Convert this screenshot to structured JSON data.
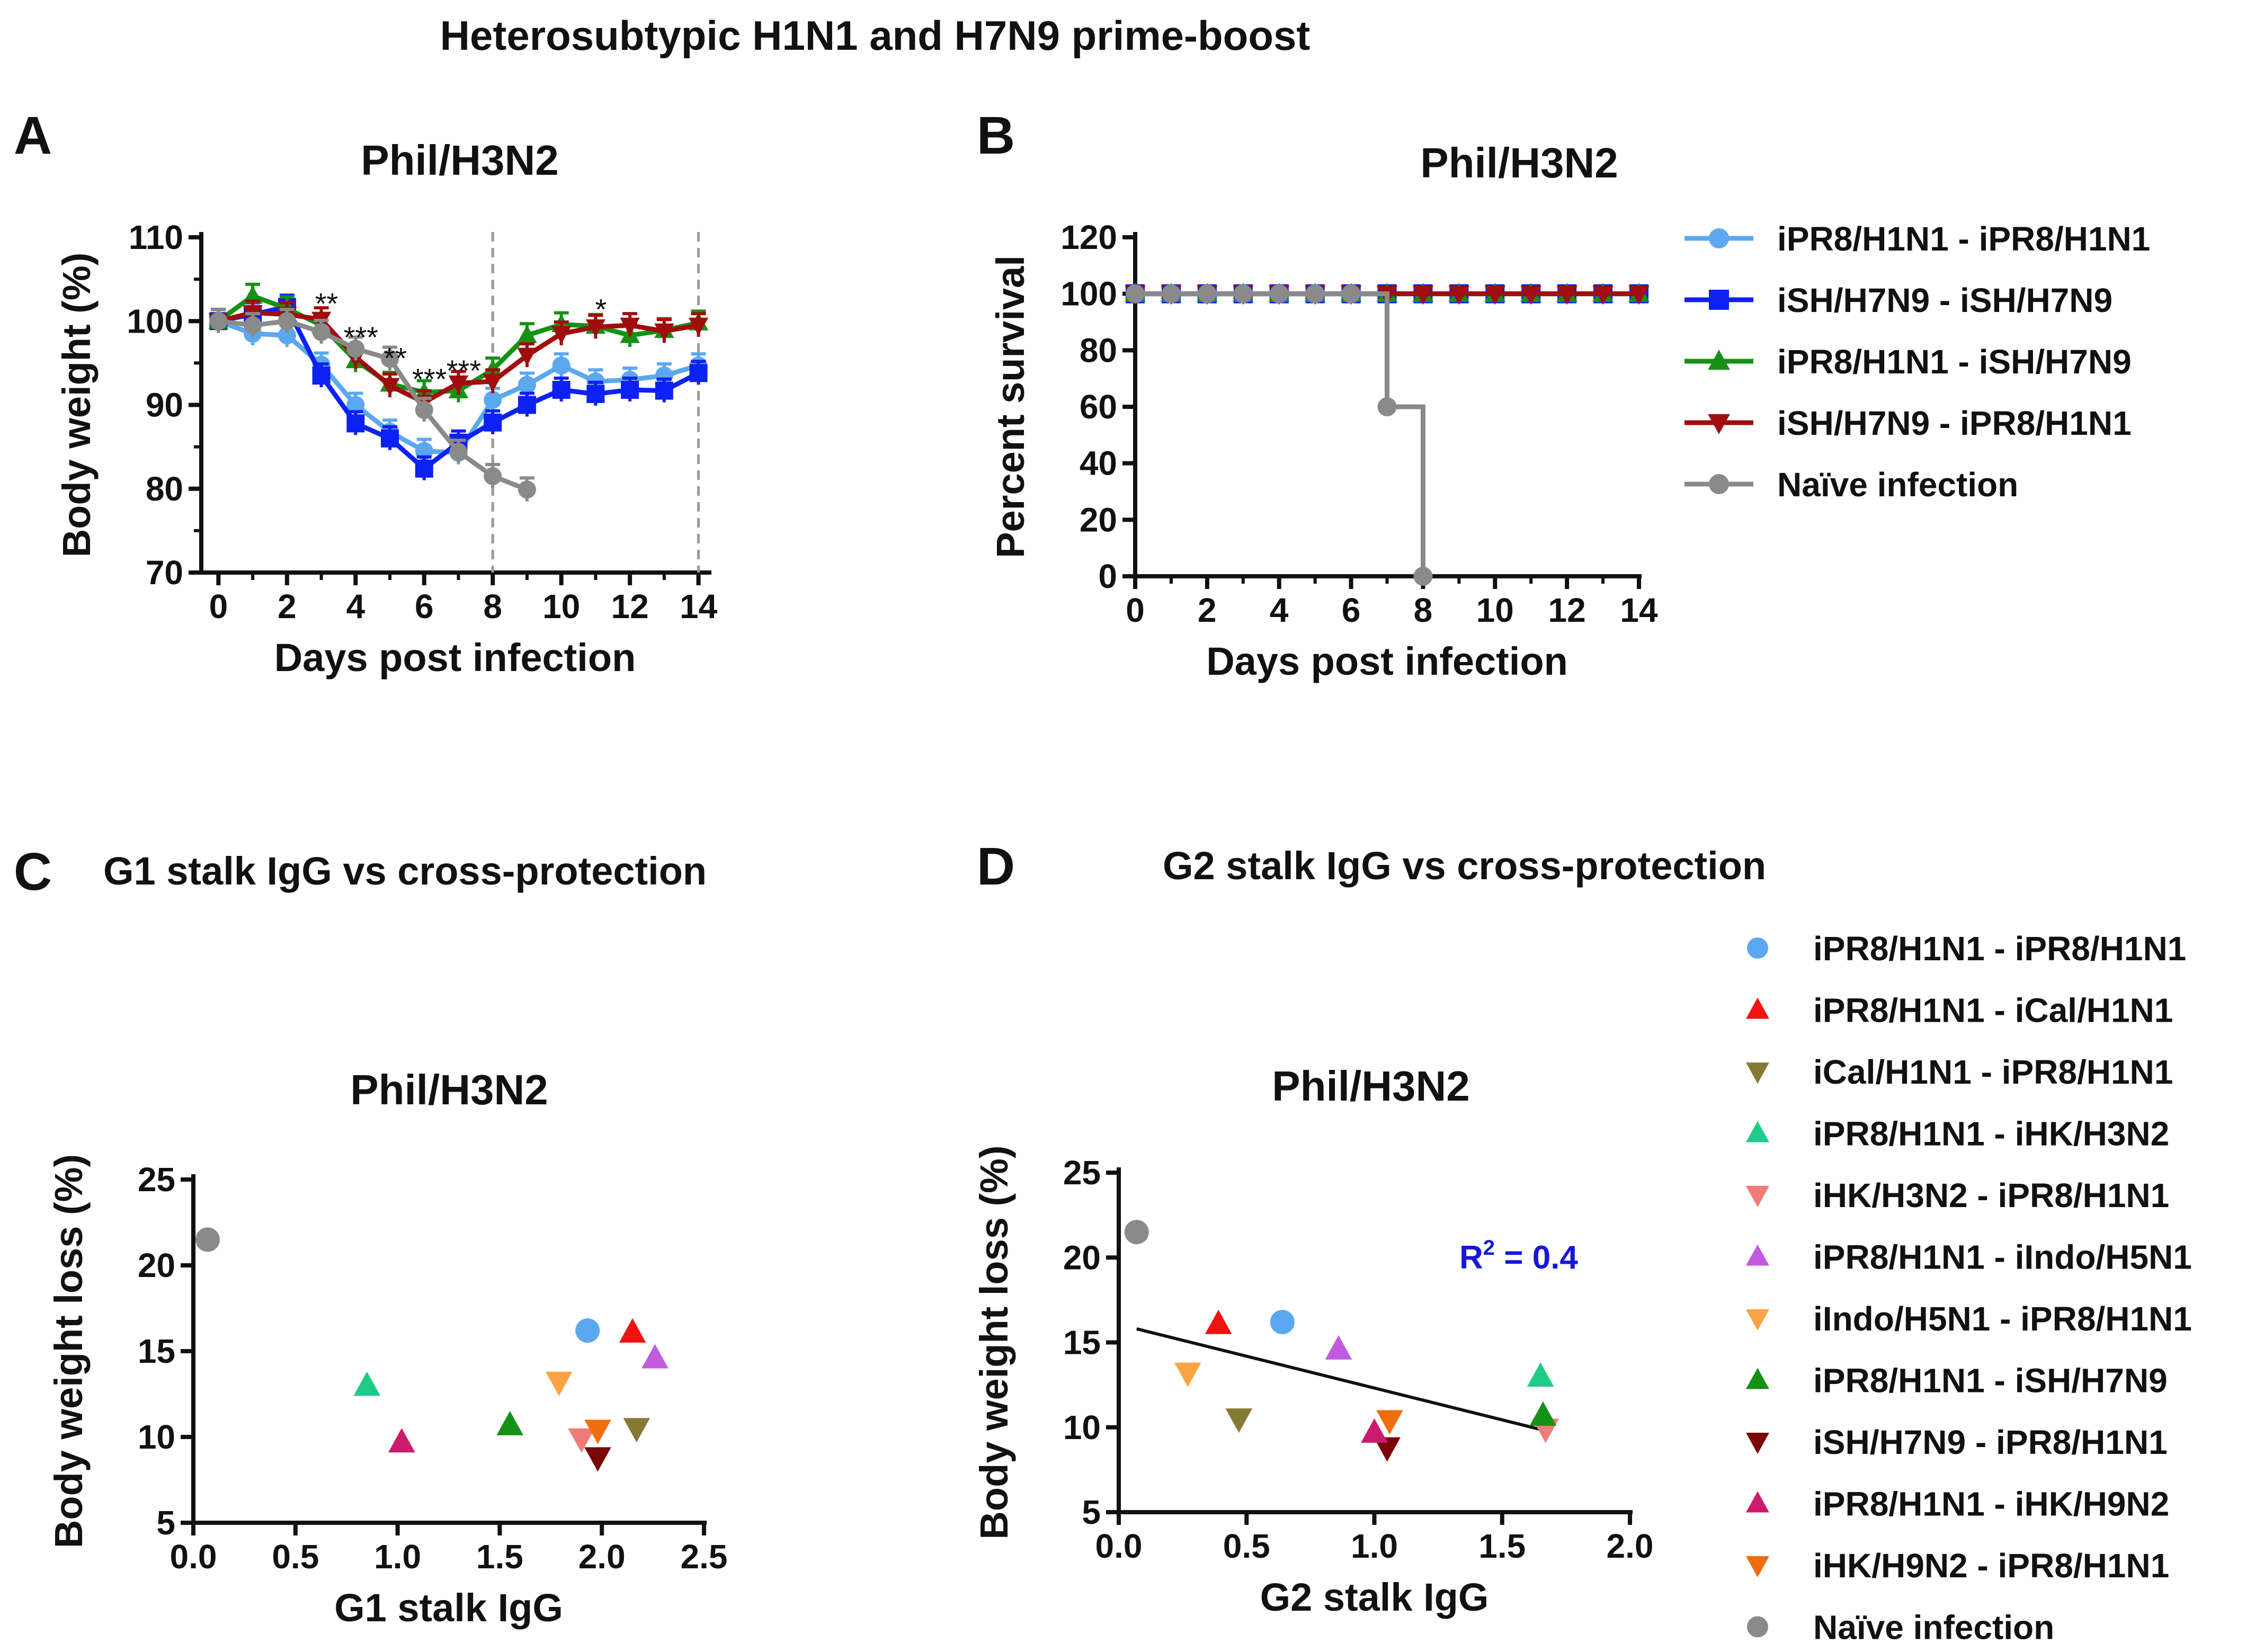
{
  "figure_title": "Heterosubtypic H1N1 and H7N9 prime-boost",
  "colors": {
    "lightblue": "#5BA8F0",
    "blue": "#0D21F2",
    "green": "#159115",
    "darkred": "#A10D0D",
    "gray": "#8A8A8A",
    "red": "#F21111",
    "olive": "#857A33",
    "teal": "#1ECC88",
    "pink": "#F27A7A",
    "purple": "#C15BE0",
    "lightorange": "#FCA443",
    "maroon": "#7A0606",
    "magenta": "#CC1A6E",
    "orange": "#F06D0D",
    "r2": "#1717D9"
  },
  "chart_data": [
    {
      "id": "A",
      "panel_label": "A",
      "type": "line",
      "title": "Phil/H3N2",
      "xlabel": "Days post infection",
      "ylabel": "Body weight (%)",
      "xlim": [
        -0.5,
        14.3
      ],
      "ylim": [
        70,
        110
      ],
      "xticks": [
        0,
        2,
        4,
        6,
        8,
        10,
        12,
        14
      ],
      "yticks": [
        70,
        80,
        90,
        100,
        110
      ],
      "vlines": [
        8,
        14
      ],
      "series": [
        {
          "name": "iPR8/H1N1 - iPR8/H1N1",
          "color": "lightblue",
          "marker": "circle",
          "x": [
            0,
            1,
            2,
            3,
            4,
            5,
            6,
            7,
            8,
            9,
            10,
            11,
            12,
            13,
            14
          ],
          "y": [
            100,
            98.5,
            98.3,
            94.8,
            90,
            86.8,
            84.5,
            84.3,
            90.6,
            92.4,
            94.7,
            92.8,
            93,
            93.5,
            94.7
          ]
        },
        {
          "name": "iSH/H7N9 - iSH/H7N9",
          "color": "blue",
          "marker": "square",
          "x": [
            0,
            1,
            2,
            3,
            4,
            5,
            6,
            7,
            8,
            9,
            10,
            11,
            12,
            13,
            14
          ],
          "y": [
            100,
            100.8,
            101.7,
            93.5,
            87.8,
            86,
            82.4,
            85.5,
            87.9,
            90,
            91.8,
            91.3,
            91.8,
            91.7,
            93.8
          ]
        },
        {
          "name": "iPR8/H1N1 - iSH/H7N9",
          "color": "green",
          "marker": "triangle-up",
          "x": [
            0,
            1,
            2,
            3,
            4,
            5,
            6,
            7,
            8,
            9,
            10,
            11,
            12,
            13,
            14
          ],
          "y": [
            100,
            103,
            101.5,
            99.5,
            95.3,
            92.5,
            91.5,
            91.7,
            94.2,
            98.3,
            99.6,
            99.4,
            98.3,
            98.9,
            99.8
          ]
        },
        {
          "name": "iSH/H7N9 - iPR8/H1N1",
          "color": "darkred",
          "marker": "triangle-down",
          "x": [
            0,
            1,
            2,
            3,
            4,
            5,
            6,
            7,
            8,
            9,
            10,
            11,
            12,
            13,
            14
          ],
          "y": [
            100,
            101,
            100.8,
            100.2,
            95.7,
            92.3,
            90.3,
            92.6,
            92.8,
            95.9,
            98.5,
            99.3,
            99.5,
            98.8,
            99.5
          ]
        },
        {
          "name": "Naïve infection",
          "color": "gray",
          "marker": "circle",
          "x": [
            0,
            1,
            2,
            3,
            4,
            5,
            6,
            7,
            8,
            9
          ],
          "y": [
            100,
            99.5,
            100,
            98.7,
            96.7,
            95.5,
            89.4,
            84.4,
            81.5,
            79.9
          ]
        }
      ],
      "significance": [
        {
          "x": 3,
          "y": 101.5,
          "label": "**"
        },
        {
          "x": 4,
          "y": 97.5,
          "label": "***"
        },
        {
          "x": 5,
          "y": 95,
          "label": "**"
        },
        {
          "x": 6,
          "y": 92.5,
          "label": "***"
        },
        {
          "x": 7,
          "y": 93.5,
          "label": "***"
        },
        {
          "x": 11,
          "y": 100.8,
          "label": "*"
        }
      ]
    },
    {
      "id": "B",
      "panel_label": "B",
      "type": "line",
      "title": "Phil/H3N2",
      "xlabel": "Days post infection",
      "ylabel": "Percent survival",
      "xlim": [
        0,
        14
      ],
      "ylim": [
        0,
        120
      ],
      "xticks": [
        0,
        2,
        4,
        6,
        8,
        10,
        12,
        14
      ],
      "yticks": [
        0,
        20,
        40,
        60,
        80,
        100,
        120
      ],
      "step": true,
      "series": [
        {
          "name": "iPR8/H1N1 - iPR8/H1N1",
          "color": "lightblue",
          "marker": "circle",
          "x": [
            0,
            1,
            2,
            3,
            4,
            5,
            6,
            7,
            8,
            9,
            10,
            11,
            12,
            13,
            14
          ],
          "y": [
            100,
            100,
            100,
            100,
            100,
            100,
            100,
            100,
            100,
            100,
            100,
            100,
            100,
            100,
            100
          ]
        },
        {
          "name": "iSH/H7N9 - iSH/H7N9",
          "color": "blue",
          "marker": "square",
          "x": [
            0,
            1,
            2,
            3,
            4,
            5,
            6,
            7,
            8,
            9,
            10,
            11,
            12,
            13,
            14
          ],
          "y": [
            100,
            100,
            100,
            100,
            100,
            100,
            100,
            100,
            100,
            100,
            100,
            100,
            100,
            100,
            100
          ]
        },
        {
          "name": "iPR8/H1N1 - iSH/H7N9",
          "color": "green",
          "marker": "triangle-up",
          "x": [
            0,
            1,
            2,
            3,
            4,
            5,
            6,
            7,
            8,
            9,
            10,
            11,
            12,
            13,
            14
          ],
          "y": [
            100,
            100,
            100,
            100,
            100,
            100,
            100,
            100,
            100,
            100,
            100,
            100,
            100,
            100,
            100
          ]
        },
        {
          "name": "iSH/H7N9 - iPR8/H1N1",
          "color": "darkred",
          "marker": "triangle-down",
          "x": [
            0,
            1,
            2,
            3,
            4,
            5,
            6,
            7,
            8,
            9,
            10,
            11,
            12,
            13,
            14
          ],
          "y": [
            100,
            100,
            100,
            100,
            100,
            100,
            100,
            100,
            100,
            100,
            100,
            100,
            100,
            100,
            100
          ]
        },
        {
          "name": "Naïve infection",
          "color": "gray",
          "marker": "circle",
          "x": [
            0,
            1,
            2,
            3,
            4,
            5,
            6,
            7,
            8
          ],
          "y": [
            100,
            100,
            100,
            100,
            100,
            100,
            100,
            60,
            0
          ]
        }
      ],
      "legend_names": [
        "iPR8/H1N1 - iPR8/H1N1",
        "iSH/H7N9 - iSH/H7N9",
        "iPR8/H1N1 - iSH/H7N9",
        "iSH/H7N9 - iPR8/H1N1",
        "Naïve infection"
      ]
    },
    {
      "id": "C",
      "panel_label": "C",
      "type": "scatter",
      "header": "G1 stalk IgG vs cross-protection",
      "title": "Phil/H3N2",
      "xlabel": "G1 stalk IgG",
      "ylabel": "Body weight loss (%)",
      "xlim": [
        0,
        2.5
      ],
      "ylim": [
        5,
        25
      ],
      "xticks": [
        0.0,
        0.5,
        1.0,
        1.5,
        2.0,
        2.5
      ],
      "xtick_labels": [
        "0.0",
        "0.5",
        "1.0",
        "1.5",
        "2.0",
        "2.5"
      ],
      "yticks": [
        5,
        10,
        15,
        20,
        25
      ],
      "points": [
        {
          "name": "iPR8/H1N1 - iPR8/H1N1",
          "x": 1.93,
          "y": 16.2,
          "color": "lightblue",
          "marker": "circle"
        },
        {
          "name": "iPR8/H1N1 - iCal/H1N1",
          "x": 2.15,
          "y": 16.1,
          "color": "red",
          "marker": "triangle-up"
        },
        {
          "name": "iCal/H1N1 - iPR8/H1N1",
          "x": 2.17,
          "y": 10.5,
          "color": "olive",
          "marker": "triangle-down"
        },
        {
          "name": "iPR8/H1N1 - iHK/H3N2",
          "x": 0.85,
          "y": 13.0,
          "color": "teal",
          "marker": "triangle-up"
        },
        {
          "name": "iHK/H3N2 - iPR8/H1N1",
          "x": 1.9,
          "y": 9.9,
          "color": "pink",
          "marker": "triangle-down"
        },
        {
          "name": "iPR8/H1N1 - iIndo/H5N1",
          "x": 2.26,
          "y": 14.6,
          "color": "purple",
          "marker": "triangle-up"
        },
        {
          "name": "iIndo/H5N1 - iPR8/H1N1",
          "x": 1.79,
          "y": 13.2,
          "color": "lightorange",
          "marker": "triangle-down"
        },
        {
          "name": "iPR8/H1N1 - iSH/H7N9",
          "x": 1.55,
          "y": 10.7,
          "color": "green",
          "marker": "triangle-up"
        },
        {
          "name": "iSH/H7N9 - iPR8/H1N1",
          "x": 1.98,
          "y": 8.8,
          "color": "maroon",
          "marker": "triangle-down"
        },
        {
          "name": "iPR8/H1N1 - iHK/H9N2",
          "x": 1.02,
          "y": 9.7,
          "color": "magenta",
          "marker": "triangle-up"
        },
        {
          "name": "iHK/H9N2 - iPR8/H1N1",
          "x": 1.98,
          "y": 10.4,
          "color": "orange",
          "marker": "triangle-down"
        },
        {
          "name": "Naïve infection",
          "x": 0.07,
          "y": 21.5,
          "color": "gray",
          "marker": "circle"
        }
      ]
    },
    {
      "id": "D",
      "panel_label": "D",
      "type": "scatter",
      "header": "G2 stalk IgG vs cross-protection",
      "title": "Phil/H3N2",
      "xlabel": "G2 stalk IgG",
      "ylabel": "Body weight loss (%)",
      "xlim": [
        0,
        2.0
      ],
      "ylim": [
        5,
        25
      ],
      "xticks": [
        0.0,
        0.5,
        1.0,
        1.5,
        2.0
      ],
      "xtick_labels": [
        "0.0",
        "0.5",
        "1.0",
        "1.5",
        "2.0"
      ],
      "yticks": [
        5,
        10,
        15,
        20,
        25
      ],
      "regression": {
        "x0": 0.07,
        "y0": 15.8,
        "x1": 1.67,
        "y1": 9.8
      },
      "r2_label": "R",
      "r2_sup": "2",
      "r2_value": " = 0.4",
      "points": [
        {
          "name": "iPR8/H1N1 - iPR8/H1N1",
          "x": 0.64,
          "y": 16.2,
          "color": "lightblue",
          "marker": "circle"
        },
        {
          "name": "iPR8/H1N1 - iCal/H1N1",
          "x": 0.39,
          "y": 16.1,
          "color": "red",
          "marker": "triangle-up"
        },
        {
          "name": "iCal/H1N1 - iPR8/H1N1",
          "x": 0.47,
          "y": 10.5,
          "color": "olive",
          "marker": "triangle-down"
        },
        {
          "name": "iPR8/H1N1 - iHK/H3N2",
          "x": 1.65,
          "y": 13.0,
          "color": "teal",
          "marker": "triangle-up"
        },
        {
          "name": "iHK/H3N2 - iPR8/H1N1",
          "x": 1.67,
          "y": 9.9,
          "color": "pink",
          "marker": "triangle-down"
        },
        {
          "name": "iPR8/H1N1 - iIndo/H5N1",
          "x": 0.86,
          "y": 14.6,
          "color": "purple",
          "marker": "triangle-up"
        },
        {
          "name": "iIndo/H5N1 - iPR8/H1N1",
          "x": 0.27,
          "y": 13.2,
          "color": "lightorange",
          "marker": "triangle-down"
        },
        {
          "name": "iPR8/H1N1 - iSH/H7N9",
          "x": 1.66,
          "y": 10.7,
          "color": "green",
          "marker": "triangle-up"
        },
        {
          "name": "iSH/H7N9 - iPR8/H1N1",
          "x": 1.05,
          "y": 8.8,
          "color": "maroon",
          "marker": "triangle-down"
        },
        {
          "name": "iPR8/H1N1 - iHK/H9N2",
          "x": 1.0,
          "y": 9.7,
          "color": "magenta",
          "marker": "triangle-up"
        },
        {
          "name": "iHK/H9N2 - iPR8/H1N1",
          "x": 1.06,
          "y": 10.4,
          "color": "orange",
          "marker": "triangle-down"
        },
        {
          "name": "Naïve infection",
          "x": 0.07,
          "y": 21.5,
          "color": "gray",
          "marker": "circle"
        }
      ]
    }
  ]
}
